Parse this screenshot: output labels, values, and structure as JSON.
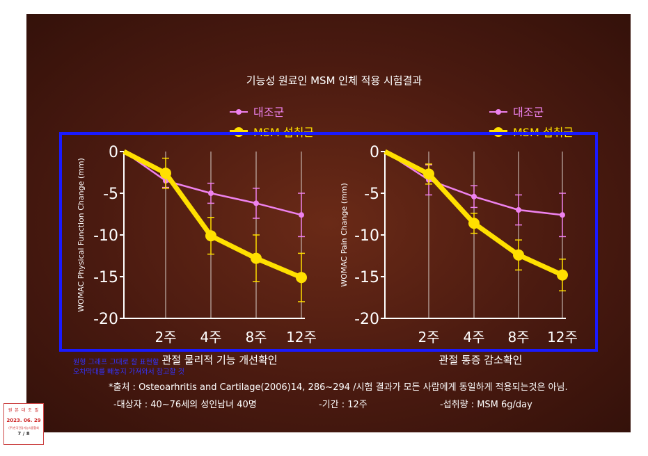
{
  "title": "기능성 원료인 MSM 인체 적용 시험결과",
  "legend": {
    "control": "대조군",
    "msm": "MSM 섭취군"
  },
  "colors": {
    "control": "#ee82ee",
    "msm": "#ffe000",
    "highlight_box": "#1a1aff",
    "overlay_text": "#3333ff"
  },
  "chart_data": [
    {
      "type": "line",
      "ylabel": "WOMAC Physical Function Change (mm)",
      "xlabel": "관절 물리적 기능 개선확인",
      "x": [
        "0",
        "2주",
        "4주",
        "8주",
        "12주"
      ],
      "tick_labels_x": [
        "2주",
        "4주",
        "8주",
        "12주"
      ],
      "ylim": [
        -20,
        0
      ],
      "yticks": [
        0,
        -5,
        -10,
        -15,
        -20
      ],
      "legend_position": "top-right",
      "grid": "vertical",
      "series": [
        {
          "name": "대조군",
          "values": [
            0,
            -3.5,
            -5.0,
            -6.2,
            -7.6
          ],
          "err": [
            0,
            0.8,
            1.2,
            1.8,
            2.6
          ]
        },
        {
          "name": "MSM 섭취군",
          "values": [
            0,
            -2.6,
            -10.1,
            -12.8,
            -15.1
          ],
          "err": [
            0,
            1.8,
            2.2,
            2.8,
            2.9
          ]
        }
      ]
    },
    {
      "type": "line",
      "ylabel": "WOMAC Pain Change (mm)",
      "xlabel": "관절 통증 감소확인",
      "x": [
        "0",
        "2주",
        "4주",
        "8주",
        "12주"
      ],
      "tick_labels_x": [
        "2주",
        "4주",
        "8주",
        "12주"
      ],
      "ylim": [
        -20,
        0
      ],
      "yticks": [
        0,
        -5,
        -10,
        -15,
        -20
      ],
      "legend_position": "top-right",
      "grid": "vertical",
      "series": [
        {
          "name": "대조군",
          "values": [
            0,
            -3.4,
            -5.4,
            -7.0,
            -7.6
          ],
          "err": [
            0,
            1.8,
            1.3,
            1.8,
            2.6
          ]
        },
        {
          "name": "MSM 섭취군",
          "values": [
            0,
            -2.7,
            -8.6,
            -12.4,
            -14.8
          ],
          "err": [
            0,
            1.2,
            1.2,
            1.8,
            1.9
          ]
        }
      ]
    }
  ],
  "overlay_note": [
    "원형 그래프 그대로 잘 표현할",
    "오차막대를 빼놓지 가져와서 참고할 것"
  ],
  "footnote": {
    "source": "*출처 : Osteoarhritis and Cartilage(2006)14, 286~294 /시험 결과가 모든 사람에게 동일하게 적용되는것은 아님.",
    "subjects": "-대상자 : 40~76세의 성인남녀 40명",
    "period": "-기간 : 12주",
    "dose": "-섭취량 : MSM 6g/day"
  },
  "stamp": {
    "line1": "원 본 대 조 필",
    "date": "2023. 06. 29",
    "org": "(주)한국건강기능식품협회",
    "page": "7 / 8"
  }
}
